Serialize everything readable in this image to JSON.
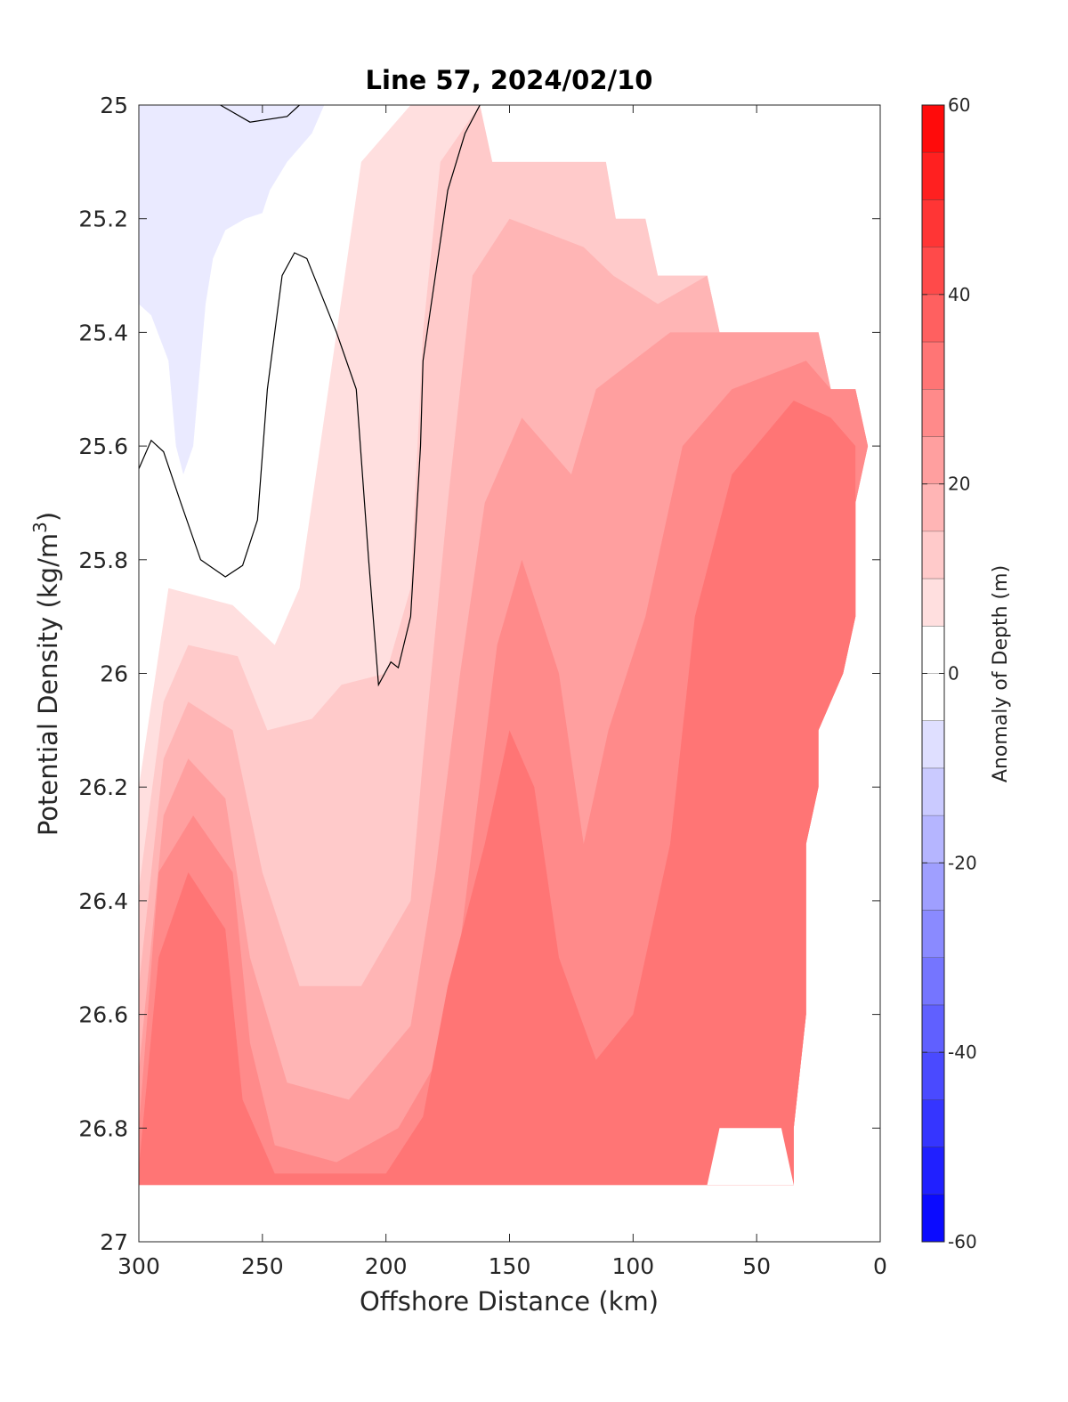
{
  "chart_data": {
    "type": "heatmap",
    "title": "Line 57, 2024/02/10",
    "xlabel": "Offshore Distance (km)",
    "ylabel_main": "Potential Density (kg/m",
    "ylabel_sup": "3",
    "ylabel_close": ")",
    "colorbar_label": "Anomaly of Depth (m)",
    "xlim": [
      300,
      0
    ],
    "ylim": [
      25,
      27
    ],
    "x_reversed": true,
    "y_reversed": true,
    "xticks": [
      300,
      250,
      200,
      150,
      100,
      50,
      0
    ],
    "yticks": [
      25,
      25.2,
      25.4,
      25.6,
      25.8,
      26,
      26.2,
      26.4,
      26.6,
      26.8,
      27
    ],
    "ytick_labels": [
      "25",
      "25.2",
      "25.4",
      "25.6",
      "25.8",
      "26",
      "26.2",
      "26.4",
      "26.6",
      "26.8",
      "27"
    ],
    "colorbar_range": [
      -60,
      60
    ],
    "colorbar_step": 5,
    "colorbar_ticks": [
      -60,
      -40,
      -20,
      0,
      20,
      40,
      60
    ],
    "colorbar_tick_labels": [
      "-60",
      "-40",
      "-20",
      "0",
      "20",
      "40",
      "60"
    ],
    "colormap": "blue-white-red",
    "colors": {
      "negative": "#0000ff",
      "zero": "#ffffff",
      "positive": "#ff0000"
    },
    "grid": false,
    "data_extent": {
      "top_edge_steps": [
        {
          "x": 300,
          "y": 25.0
        },
        {
          "x": 162,
          "y": 25.0
        },
        {
          "x": 157,
          "y": 25.1
        },
        {
          "x": 111,
          "y": 25.1
        },
        {
          "x": 107,
          "y": 25.2
        },
        {
          "x": 95,
          "y": 25.2
        },
        {
          "x": 90,
          "y": 25.3
        },
        {
          "x": 70,
          "y": 25.3
        },
        {
          "x": 65,
          "y": 25.4
        },
        {
          "x": 25,
          "y": 25.4
        },
        {
          "x": 20,
          "y": 25.5
        },
        {
          "x": 10,
          "y": 25.5
        },
        {
          "x": 5,
          "y": 25.6
        },
        {
          "x": 10,
          "y": 25.7
        },
        {
          "x": 10,
          "y": 25.9
        },
        {
          "x": 15,
          "y": 26.0
        },
        {
          "x": 25,
          "y": 26.1
        },
        {
          "x": 25,
          "y": 26.2
        },
        {
          "x": 30,
          "y": 26.3
        },
        {
          "x": 30,
          "y": 26.6
        },
        {
          "x": 35,
          "y": 26.8
        },
        {
          "x": 35,
          "y": 26.9
        },
        {
          "x": 300,
          "y": 26.9
        }
      ],
      "bottom_density_limit": 26.9,
      "notch_bottom_right": [
        [
          65,
          26.8
        ],
        [
          40,
          26.8
        ],
        [
          35,
          26.9
        ],
        [
          70,
          26.9
        ]
      ]
    },
    "anomaly_bands": [
      {
        "level": 5,
        "points": [
          [
            300,
            26.2
          ],
          [
            288,
            25.85
          ],
          [
            262,
            25.88
          ],
          [
            245,
            25.95
          ],
          [
            235,
            25.85
          ],
          [
            225,
            25.55
          ],
          [
            210,
            25.1
          ],
          [
            190,
            25.0
          ],
          [
            162,
            25.0
          ],
          [
            157,
            25.1
          ],
          [
            111,
            25.1
          ],
          [
            107,
            25.2
          ],
          [
            95,
            25.2
          ],
          [
            90,
            25.3
          ],
          [
            70,
            25.3
          ],
          [
            65,
            25.4
          ],
          [
            25,
            25.4
          ],
          [
            20,
            25.5
          ],
          [
            10,
            25.5
          ],
          [
            5,
            25.6
          ],
          [
            10,
            25.7
          ],
          [
            10,
            25.9
          ],
          [
            15,
            26.0
          ],
          [
            25,
            26.1
          ],
          [
            25,
            26.2
          ],
          [
            30,
            26.3
          ],
          [
            30,
            26.6
          ],
          [
            35,
            26.8
          ],
          [
            35,
            26.9
          ],
          [
            300,
            26.9
          ]
        ]
      },
      {
        "level": 10,
        "points": [
          [
            300,
            26.38
          ],
          [
            290,
            26.05
          ],
          [
            280,
            25.95
          ],
          [
            260,
            25.97
          ],
          [
            248,
            26.1
          ],
          [
            230,
            26.08
          ],
          [
            218,
            26.02
          ],
          [
            200,
            26.0
          ],
          [
            190,
            25.85
          ],
          [
            185,
            25.4
          ],
          [
            178,
            25.1
          ],
          [
            162,
            25.0
          ],
          [
            157,
            25.1
          ],
          [
            111,
            25.1
          ],
          [
            107,
            25.2
          ],
          [
            95,
            25.2
          ],
          [
            90,
            25.3
          ],
          [
            70,
            25.3
          ],
          [
            65,
            25.4
          ],
          [
            25,
            25.4
          ],
          [
            20,
            25.5
          ],
          [
            10,
            25.5
          ],
          [
            5,
            25.6
          ],
          [
            10,
            25.7
          ],
          [
            10,
            25.9
          ],
          [
            15,
            26.0
          ],
          [
            25,
            26.1
          ],
          [
            25,
            26.2
          ],
          [
            30,
            26.3
          ],
          [
            30,
            26.6
          ],
          [
            35,
            26.8
          ],
          [
            35,
            26.9
          ],
          [
            300,
            26.9
          ]
        ]
      },
      {
        "level": 15,
        "points": [
          [
            300,
            26.55
          ],
          [
            290,
            26.15
          ],
          [
            280,
            26.05
          ],
          [
            262,
            26.1
          ],
          [
            250,
            26.35
          ],
          [
            235,
            26.55
          ],
          [
            210,
            26.55
          ],
          [
            190,
            26.4
          ],
          [
            185,
            26.15
          ],
          [
            175,
            25.7
          ],
          [
            165,
            25.3
          ],
          [
            150,
            25.2
          ],
          [
            120,
            25.25
          ],
          [
            108,
            25.3
          ],
          [
            90,
            25.35
          ],
          [
            70,
            25.3
          ],
          [
            65,
            25.4
          ],
          [
            25,
            25.4
          ],
          [
            20,
            25.5
          ],
          [
            10,
            25.5
          ],
          [
            5,
            25.6
          ],
          [
            10,
            25.7
          ],
          [
            10,
            25.9
          ],
          [
            15,
            26.0
          ],
          [
            25,
            26.1
          ],
          [
            25,
            26.2
          ],
          [
            30,
            26.3
          ],
          [
            30,
            26.6
          ],
          [
            35,
            26.8
          ],
          [
            35,
            26.9
          ],
          [
            300,
            26.9
          ]
        ]
      },
      {
        "level": 20,
        "points": [
          [
            300,
            26.7
          ],
          [
            290,
            26.25
          ],
          [
            280,
            26.15
          ],
          [
            265,
            26.22
          ],
          [
            255,
            26.5
          ],
          [
            240,
            26.72
          ],
          [
            215,
            26.75
          ],
          [
            190,
            26.62
          ],
          [
            180,
            26.35
          ],
          [
            170,
            26.0
          ],
          [
            160,
            25.7
          ],
          [
            145,
            25.55
          ],
          [
            125,
            25.65
          ],
          [
            115,
            25.5
          ],
          [
            100,
            25.45
          ],
          [
            85,
            25.4
          ],
          [
            65,
            25.4
          ],
          [
            25,
            25.4
          ],
          [
            20,
            25.5
          ],
          [
            10,
            25.5
          ],
          [
            5,
            25.6
          ],
          [
            10,
            25.7
          ],
          [
            10,
            25.9
          ],
          [
            15,
            26.0
          ],
          [
            25,
            26.1
          ],
          [
            25,
            26.2
          ],
          [
            30,
            26.3
          ],
          [
            30,
            26.6
          ],
          [
            35,
            26.8
          ],
          [
            35,
            26.9
          ],
          [
            300,
            26.9
          ]
        ]
      },
      {
        "level": 25,
        "points": [
          [
            300,
            26.8
          ],
          [
            292,
            26.35
          ],
          [
            278,
            26.25
          ],
          [
            262,
            26.35
          ],
          [
            255,
            26.65
          ],
          [
            245,
            26.83
          ],
          [
            220,
            26.86
          ],
          [
            195,
            26.8
          ],
          [
            175,
            26.65
          ],
          [
            165,
            26.3
          ],
          [
            155,
            25.95
          ],
          [
            145,
            25.8
          ],
          [
            130,
            26.0
          ],
          [
            120,
            26.3
          ],
          [
            110,
            26.1
          ],
          [
            95,
            25.9
          ],
          [
            80,
            25.6
          ],
          [
            60,
            25.5
          ],
          [
            30,
            25.45
          ],
          [
            20,
            25.5
          ],
          [
            10,
            25.5
          ],
          [
            5,
            25.6
          ],
          [
            10,
            25.7
          ],
          [
            10,
            25.9
          ],
          [
            15,
            26.0
          ],
          [
            25,
            26.1
          ],
          [
            25,
            26.2
          ],
          [
            30,
            26.3
          ],
          [
            30,
            26.6
          ],
          [
            35,
            26.8
          ],
          [
            35,
            26.9
          ],
          [
            300,
            26.9
          ]
        ]
      },
      {
        "level": 30,
        "points": [
          [
            300,
            26.87
          ],
          [
            292,
            26.5
          ],
          [
            280,
            26.35
          ],
          [
            265,
            26.45
          ],
          [
            258,
            26.75
          ],
          [
            245,
            26.88
          ],
          [
            200,
            26.88
          ],
          [
            185,
            26.78
          ],
          [
            175,
            26.55
          ],
          [
            160,
            26.3
          ],
          [
            150,
            26.1
          ],
          [
            140,
            26.2
          ],
          [
            130,
            26.5
          ],
          [
            115,
            26.68
          ],
          [
            100,
            26.6
          ],
          [
            85,
            26.3
          ],
          [
            75,
            25.9
          ],
          [
            60,
            25.65
          ],
          [
            35,
            25.52
          ],
          [
            20,
            25.55
          ],
          [
            10,
            25.6
          ],
          [
            10,
            25.7
          ],
          [
            10,
            25.9
          ],
          [
            15,
            26.0
          ],
          [
            25,
            26.1
          ],
          [
            25,
            26.2
          ],
          [
            30,
            26.3
          ],
          [
            30,
            26.6
          ],
          [
            35,
            26.8
          ],
          [
            35,
            26.9
          ],
          [
            300,
            26.9
          ]
        ]
      }
    ],
    "zero_contours": [
      {
        "label": "upper-left",
        "points": [
          [
            267,
            25.0
          ],
          [
            255,
            25.03
          ],
          [
            240,
            25.02
          ],
          [
            235,
            25.0
          ]
        ]
      },
      {
        "label": "left-lobe",
        "points": [
          [
            300,
            25.64
          ],
          [
            295,
            25.59
          ],
          [
            290,
            25.61
          ],
          [
            283,
            25.7
          ],
          [
            275,
            25.8
          ],
          [
            265,
            25.83
          ],
          [
            258,
            25.81
          ],
          [
            252,
            25.73
          ],
          [
            248,
            25.5
          ],
          [
            242,
            25.3
          ],
          [
            237,
            25.26
          ],
          [
            232,
            25.27
          ],
          [
            220,
            25.4
          ],
          [
            212,
            25.5
          ],
          [
            207,
            25.8
          ],
          [
            203,
            26.02
          ],
          [
            198,
            25.98
          ],
          [
            195,
            25.99
          ],
          [
            190,
            25.9
          ],
          [
            186,
            25.6
          ],
          [
            185,
            25.45
          ],
          [
            180,
            25.3
          ],
          [
            175,
            25.15
          ],
          [
            168,
            25.05
          ],
          [
            162,
            25.0
          ]
        ]
      }
    ],
    "negative_region": {
      "level": -5,
      "points": [
        [
          300,
          25.0
        ],
        [
          300,
          25.35
        ],
        [
          295,
          25.37
        ],
        [
          288,
          25.45
        ],
        [
          285,
          25.6
        ],
        [
          282,
          25.65
        ],
        [
          278,
          25.6
        ],
        [
          275,
          25.45
        ],
        [
          273,
          25.35
        ],
        [
          270,
          25.27
        ],
        [
          265,
          25.22
        ],
        [
          257,
          25.2
        ],
        [
          250,
          25.19
        ],
        [
          247,
          25.15
        ],
        [
          240,
          25.1
        ],
        [
          230,
          25.05
        ],
        [
          225,
          25.0
        ]
      ]
    }
  }
}
